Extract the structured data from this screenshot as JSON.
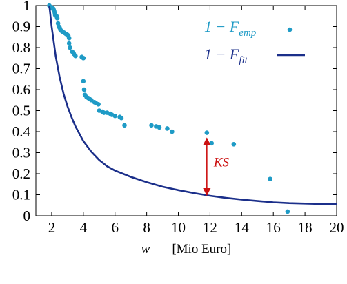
{
  "chart_data": {
    "type": "scatter",
    "xlim": [
      1,
      20
    ],
    "ylim": [
      0,
      1
    ],
    "x_ticks": [
      2,
      4,
      6,
      8,
      10,
      12,
      14,
      16,
      18,
      20
    ],
    "y_ticks": [
      0,
      0.1,
      0.2,
      0.3,
      0.4,
      0.5,
      0.6,
      0.7,
      0.8,
      0.9,
      1
    ],
    "xlabel": {
      "symbol": "w",
      "unit": "[Mio Euro]"
    },
    "ylabel": "",
    "grid": false,
    "legend_position": "top-right",
    "series": [
      {
        "legend_main": "1 − F",
        "legend_sub": "emp",
        "style": "points",
        "color": "#1f9bc6",
        "points": [
          [
            1.85,
            1.0
          ],
          [
            1.9,
            0.995
          ],
          [
            2.0,
            0.99
          ],
          [
            2.05,
            0.99
          ],
          [
            2.1,
            0.985
          ],
          [
            2.12,
            0.98
          ],
          [
            2.15,
            0.975
          ],
          [
            2.2,
            0.965
          ],
          [
            2.22,
            0.955
          ],
          [
            2.3,
            0.95
          ],
          [
            2.35,
            0.94
          ],
          [
            2.4,
            0.915
          ],
          [
            2.45,
            0.9
          ],
          [
            2.5,
            0.895
          ],
          [
            2.55,
            0.885
          ],
          [
            2.6,
            0.88
          ],
          [
            2.7,
            0.875
          ],
          [
            2.8,
            0.87
          ],
          [
            2.9,
            0.865
          ],
          [
            3.0,
            0.86
          ],
          [
            3.05,
            0.855
          ],
          [
            3.1,
            0.845
          ],
          [
            3.1,
            0.82
          ],
          [
            3.15,
            0.8
          ],
          [
            3.3,
            0.78
          ],
          [
            3.4,
            0.77
          ],
          [
            3.5,
            0.76
          ],
          [
            3.9,
            0.755
          ],
          [
            4.0,
            0.75
          ],
          [
            4.0,
            0.64
          ],
          [
            4.05,
            0.6
          ],
          [
            4.1,
            0.575
          ],
          [
            4.2,
            0.565
          ],
          [
            4.3,
            0.56
          ],
          [
            4.4,
            0.555
          ],
          [
            4.5,
            0.55
          ],
          [
            4.7,
            0.54
          ],
          [
            4.8,
            0.535
          ],
          [
            4.95,
            0.53
          ],
          [
            5.0,
            0.5
          ],
          [
            5.2,
            0.495
          ],
          [
            5.3,
            0.49
          ],
          [
            5.5,
            0.49
          ],
          [
            5.7,
            0.485
          ],
          [
            5.8,
            0.48
          ],
          [
            6.0,
            0.475
          ],
          [
            6.3,
            0.47
          ],
          [
            6.4,
            0.465
          ],
          [
            6.6,
            0.43
          ],
          [
            8.3,
            0.43
          ],
          [
            8.6,
            0.425
          ],
          [
            8.8,
            0.42
          ],
          [
            9.3,
            0.415
          ],
          [
            9.6,
            0.4
          ],
          [
            11.8,
            0.395
          ],
          [
            12.1,
            0.345
          ],
          [
            13.5,
            0.34
          ],
          [
            15.8,
            0.175
          ],
          [
            16.9,
            0.02
          ]
        ]
      },
      {
        "legend_main": "1 − F",
        "legend_sub": "fit",
        "style": "line",
        "color": "#1b2f8a",
        "points": [
          [
            1.85,
            1.0
          ],
          [
            2.0,
            0.9
          ],
          [
            2.25,
            0.76
          ],
          [
            2.5,
            0.66
          ],
          [
            2.75,
            0.58
          ],
          [
            3.0,
            0.52
          ],
          [
            3.25,
            0.47
          ],
          [
            3.5,
            0.425
          ],
          [
            4.0,
            0.355
          ],
          [
            4.5,
            0.305
          ],
          [
            5.0,
            0.265
          ],
          [
            5.5,
            0.235
          ],
          [
            6.0,
            0.215
          ],
          [
            6.5,
            0.2
          ],
          [
            7.0,
            0.185
          ],
          [
            8.0,
            0.16
          ],
          [
            9.0,
            0.138
          ],
          [
            10.0,
            0.122
          ],
          [
            11.0,
            0.108
          ],
          [
            12.0,
            0.095
          ],
          [
            13.0,
            0.085
          ],
          [
            14.0,
            0.077
          ],
          [
            15.0,
            0.07
          ],
          [
            16.0,
            0.064
          ],
          [
            17.0,
            0.06
          ],
          [
            18.0,
            0.058
          ],
          [
            19.0,
            0.056
          ],
          [
            20.0,
            0.055
          ]
        ]
      }
    ],
    "annotations": [
      {
        "text": "KS",
        "color": "#cc1111",
        "arrow_x": 11.8,
        "arrow_from_y": 0.095,
        "arrow_to_y": 0.395
      }
    ]
  }
}
